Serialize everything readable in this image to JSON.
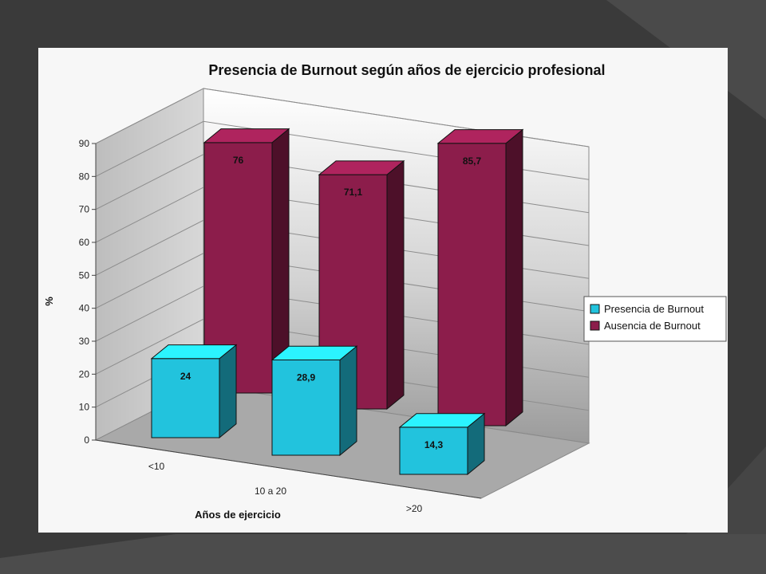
{
  "chart_data": {
    "type": "bar",
    "title": "Presencia de Burnout según años de ejercicio profesional",
    "xlabel": "Años de ejercicio",
    "ylabel": "%",
    "ylim": [
      0,
      90
    ],
    "yticks": [
      "0",
      "10",
      "20",
      "30",
      "40",
      "50",
      "60",
      "70",
      "80",
      "90"
    ],
    "categories": [
      "<10",
      "10 a 20",
      ">20"
    ],
    "series": [
      {
        "name": "Presencia de Burnout",
        "values": [
          24,
          28.9,
          14.3
        ],
        "labels": [
          "24",
          "28,9",
          "14,3"
        ],
        "color": "#22c3dd"
      },
      {
        "name": "Ausencia de Burnout",
        "values": [
          76,
          71.1,
          85.7
        ],
        "labels": [
          "76",
          "71,1",
          "85,7"
        ],
        "color": "#8c1d4b"
      }
    ],
    "grid": true,
    "legend": "right"
  }
}
